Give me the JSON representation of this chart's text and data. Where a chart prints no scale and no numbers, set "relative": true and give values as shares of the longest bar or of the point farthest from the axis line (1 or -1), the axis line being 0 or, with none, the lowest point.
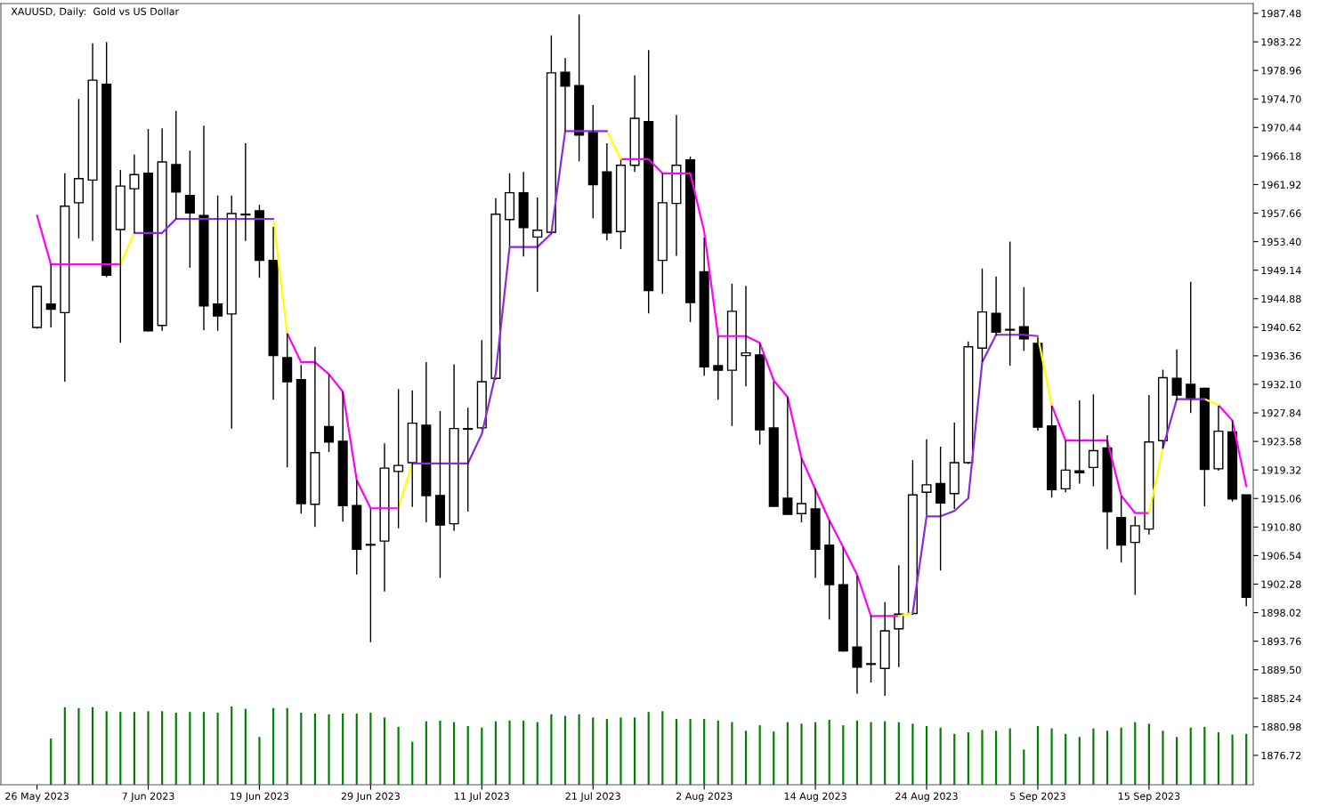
{
  "chart_data": [
    {
      "type": "candlestick",
      "title": "XAUUSD, Daily:  Gold vs US Dollar",
      "categories": [
        "26 May 2023",
        null,
        null,
        null,
        null,
        null,
        null,
        null,
        "7 Jun 2023",
        null,
        null,
        null,
        null,
        null,
        null,
        null,
        "19 Jun 2023",
        null,
        null,
        null,
        null,
        null,
        null,
        null,
        "29 Jun 2023",
        null,
        null,
        null,
        null,
        null,
        null,
        null,
        "11 Jul 2023",
        null,
        null,
        null,
        null,
        null,
        null,
        null,
        "21 Jul 2023",
        null,
        null,
        null,
        null,
        null,
        null,
        null,
        "2 Aug 2023",
        null,
        null,
        null,
        null,
        null,
        null,
        null,
        "14 Aug 2023",
        null,
        null,
        null,
        null,
        null,
        null,
        null,
        "24 Aug 2023",
        null,
        null,
        null,
        null,
        null,
        null,
        null,
        "5 Sep 2023",
        null,
        null,
        null,
        null,
        null,
        null,
        null,
        "15 Sep 2023",
        null,
        null,
        null,
        null,
        null,
        null,
        null
      ],
      "ohlc": [
        [
          1940.6,
          1946.8,
          1940.4,
          1946.7
        ],
        [
          1944.1,
          1950.0,
          1940.6,
          1943.3
        ],
        [
          1942.8,
          1963.6,
          1932.5,
          1958.7
        ],
        [
          1959.2,
          1974.7,
          1953.9,
          1962.8
        ],
        [
          1962.6,
          1983.0,
          1953.5,
          1977.5
        ],
        [
          1976.9,
          1983.2,
          1948.1,
          1948.4
        ],
        [
          1955.2,
          1964.1,
          1938.3,
          1961.7
        ],
        [
          1961.3,
          1966.4,
          1954.7,
          1963.4
        ],
        [
          1963.6,
          1970.2,
          1940.0,
          1940.1
        ],
        [
          1940.9,
          1970.3,
          1940.1,
          1965.3
        ],
        [
          1964.9,
          1972.9,
          1956.8,
          1960.8
        ],
        [
          1960.3,
          1967.0,
          1949.5,
          1957.7
        ],
        [
          1957.3,
          1970.7,
          1940.2,
          1943.8
        ],
        [
          1944.1,
          1960.3,
          1940.1,
          1942.3
        ],
        [
          1942.6,
          1960.3,
          1925.5,
          1957.6
        ],
        [
          1957.4,
          1968.1,
          1953.5,
          1957.5
        ],
        [
          1958.0,
          1958.9,
          1948.0,
          1950.6
        ],
        [
          1950.6,
          1955.6,
          1929.8,
          1936.4
        ],
        [
          1936.1,
          1939.7,
          1919.7,
          1932.5
        ],
        [
          1932.8,
          1935.0,
          1912.8,
          1914.3
        ],
        [
          1914.2,
          1937.7,
          1910.8,
          1921.9
        ],
        [
          1925.8,
          1933.6,
          1922.0,
          1923.5
        ],
        [
          1923.6,
          1931.0,
          1911.6,
          1914.0
        ],
        [
          1914.0,
          1917.8,
          1903.7,
          1907.5
        ],
        [
          1908.2,
          1913.5,
          1893.6,
          1908.1
        ],
        [
          1908.7,
          1923.3,
          1901.2,
          1919.6
        ],
        [
          1919.1,
          1931.4,
          1910.6,
          1920.0
        ],
        [
          1920.4,
          1931.2,
          1913.8,
          1926.3
        ],
        [
          1926.0,
          1935.4,
          1911.5,
          1915.5
        ],
        [
          1915.5,
          1928.1,
          1903.2,
          1911.1
        ],
        [
          1911.3,
          1935.1,
          1910.2,
          1925.5
        ],
        [
          1925.5,
          1928.6,
          1913.1,
          1925.4
        ],
        [
          1925.6,
          1938.7,
          1925.4,
          1932.5
        ],
        [
          1933.0,
          1959.9,
          1932.8,
          1957.5
        ],
        [
          1956.7,
          1963.6,
          1952.7,
          1960.7
        ],
        [
          1960.7,
          1963.8,
          1951.2,
          1955.5
        ],
        [
          1954.1,
          1960.0,
          1945.9,
          1955.1
        ],
        [
          1954.8,
          1984.2,
          1954.6,
          1978.6
        ],
        [
          1978.7,
          1980.8,
          1969.9,
          1976.6
        ],
        [
          1976.7,
          1987.3,
          1965.4,
          1969.3
        ],
        [
          1969.7,
          1973.8,
          1956.9,
          1961.9
        ],
        [
          1963.8,
          1968.1,
          1953.6,
          1954.7
        ],
        [
          1954.9,
          1965.6,
          1952.3,
          1964.8
        ],
        [
          1964.8,
          1978.2,
          1963.8,
          1971.8
        ],
        [
          1971.3,
          1982.0,
          1942.7,
          1946.1
        ],
        [
          1950.6,
          1963.6,
          1945.6,
          1959.2
        ],
        [
          1959.1,
          1972.3,
          1951.3,
          1964.8
        ],
        [
          1965.6,
          1966.1,
          1941.4,
          1944.3
        ],
        [
          1948.9,
          1954.0,
          1933.4,
          1934.7
        ],
        [
          1934.9,
          1939.3,
          1929.8,
          1934.2
        ],
        [
          1934.2,
          1947.1,
          1925.9,
          1943.0
        ],
        [
          1936.4,
          1946.8,
          1931.8,
          1936.8
        ],
        [
          1936.5,
          1938.3,
          1923.1,
          1925.3
        ],
        [
          1925.6,
          1932.5,
          1913.8,
          1913.9
        ],
        [
          1915.1,
          1930.2,
          1912.6,
          1912.7
        ],
        [
          1912.8,
          1921.1,
          1911.5,
          1914.3
        ],
        [
          1913.5,
          1916.6,
          1903.2,
          1907.5
        ],
        [
          1908.1,
          1911.8,
          1897.0,
          1902.2
        ],
        [
          1902.2,
          1907.8,
          1892.2,
          1892.3
        ],
        [
          1892.9,
          1903.5,
          1885.9,
          1889.9
        ],
        [
          1890.4,
          1897.6,
          1887.6,
          1890.3
        ],
        [
          1889.7,
          1899.6,
          1885.6,
          1895.3
        ],
        [
          1895.6,
          1905.1,
          1889.9,
          1897.8
        ],
        [
          1897.9,
          1920.8,
          1897.7,
          1915.6
        ],
        [
          1916.0,
          1923.9,
          1912.5,
          1917.1
        ],
        [
          1917.3,
          1922.8,
          1904.3,
          1914.4
        ],
        [
          1915.8,
          1926.4,
          1913.5,
          1920.4
        ],
        [
          1920.4,
          1938.5,
          1920.2,
          1937.7
        ],
        [
          1937.5,
          1949.4,
          1935.4,
          1942.9
        ],
        [
          1942.7,
          1948.2,
          1939.4,
          1939.9
        ],
        [
          1940.3,
          1953.4,
          1934.9,
          1940.2
        ],
        [
          1940.7,
          1946.6,
          1937.1,
          1938.9
        ],
        [
          1938.2,
          1939.1,
          1925.2,
          1925.7
        ],
        [
          1925.9,
          1928.9,
          1915.2,
          1916.4
        ],
        [
          1916.5,
          1923.7,
          1916.0,
          1919.3
        ],
        [
          1919.2,
          1929.7,
          1917.3,
          1918.9
        ],
        [
          1919.7,
          1930.6,
          1916.9,
          1922.2
        ],
        [
          1922.6,
          1924.5,
          1907.5,
          1913.1
        ],
        [
          1912.2,
          1915.4,
          1905.5,
          1908.1
        ],
        [
          1908.5,
          1912.4,
          1900.7,
          1911.0
        ],
        [
          1910.5,
          1930.5,
          1909.7,
          1923.5
        ],
        [
          1923.7,
          1934.3,
          1922.6,
          1933.1
        ],
        [
          1933.0,
          1937.3,
          1929.7,
          1930.5
        ],
        [
          1932.1,
          1947.4,
          1927.8,
          1929.9
        ],
        [
          1931.5,
          1931.6,
          1913.9,
          1919.4
        ],
        [
          1919.5,
          1928.9,
          1919.2,
          1925.1
        ],
        [
          1925.0,
          1926.7,
          1914.6,
          1915.0
        ],
        [
          1915.6,
          1915.6,
          1899.0,
          1900.3
        ]
      ],
      "series": [
        {
          "type": "line",
          "color": "#ff00ff",
          "values": [
            1957.3,
            1950.0,
            1950.0,
            1950.0,
            1950.0,
            1950.0,
            1950.0,
            null,
            null,
            null,
            null,
            null,
            null,
            null,
            null,
            null,
            null,
            null,
            1939.7,
            1935.4,
            1935.4,
            1933.6,
            1931.0,
            1917.8,
            1913.6,
            1913.6,
            1913.6,
            null,
            null,
            null,
            null,
            null,
            null,
            null,
            null,
            null,
            null,
            null,
            null,
            null,
            null,
            null,
            1965.7,
            1965.7,
            1965.7,
            1963.6,
            1963.6,
            1963.6,
            1954.9,
            1939.3,
            1939.3,
            1939.3,
            1938.3,
            1932.7,
            1930.2,
            1921.1,
            1916.4,
            1911.8,
            1907.8,
            1903.7,
            1897.5,
            1897.5,
            1897.5,
            null,
            null,
            null,
            null,
            null,
            null,
            null,
            null,
            null,
            null,
            1929.0,
            1923.7,
            1923.7,
            1923.7,
            1923.7,
            1915.5,
            1912.9,
            1912.9,
            null,
            null,
            null,
            null,
            1929.0,
            1926.7,
            1916.9
          ]
        },
        {
          "type": "line",
          "color": "#ffff00",
          "values": [
            null,
            null,
            null,
            null,
            null,
            null,
            1950.0,
            1954.7,
            null,
            null,
            null,
            null,
            null,
            null,
            null,
            null,
            null,
            1956.8,
            1939.7,
            null,
            null,
            null,
            null,
            null,
            null,
            null,
            1913.6,
            1920.3,
            null,
            null,
            null,
            null,
            null,
            null,
            null,
            null,
            null,
            null,
            null,
            null,
            null,
            1969.9,
            1965.7,
            null,
            null,
            null,
            null,
            null,
            null,
            null,
            null,
            null,
            null,
            null,
            null,
            null,
            null,
            null,
            null,
            null,
            null,
            null,
            1897.5,
            1898.0,
            null,
            null,
            null,
            null,
            null,
            null,
            null,
            null,
            1939.3,
            1929.0,
            null,
            null,
            null,
            null,
            null,
            null,
            1912.9,
            1922.6,
            null,
            null,
            1929.9,
            1929.0,
            null,
            null
          ]
        },
        {
          "type": "line",
          "color": "#8a2be2",
          "values": [
            null,
            null,
            null,
            null,
            null,
            null,
            null,
            1954.7,
            1954.7,
            1954.7,
            1956.8,
            1956.8,
            1956.8,
            1956.8,
            1956.8,
            1956.8,
            1956.8,
            1956.8,
            null,
            null,
            null,
            null,
            null,
            null,
            null,
            null,
            null,
            1920.3,
            1920.3,
            1920.3,
            1920.3,
            1920.3,
            1924.7,
            1933.7,
            1952.6,
            1952.6,
            1952.6,
            1954.6,
            1969.9,
            1969.9,
            1969.9,
            1969.9,
            null,
            null,
            null,
            null,
            null,
            null,
            null,
            null,
            null,
            null,
            null,
            null,
            null,
            null,
            null,
            null,
            null,
            null,
            null,
            null,
            null,
            1898.0,
            1912.4,
            1912.4,
            1913.2,
            1915.1,
            1935.4,
            1939.5,
            1939.5,
            1939.5,
            1939.3,
            null,
            null,
            null,
            null,
            null,
            null,
            null,
            null,
            1922.6,
            1929.9,
            1929.9,
            1929.9,
            null,
            null,
            null
          ]
        }
      ],
      "ylim": [
        1872.33,
        1988.94
      ],
      "yticks": [
        1987.48,
        1983.22,
        1978.96,
        {
          "value": 1974.7,
          "label": "1974.70"
        },
        1970.44,
        1966.18,
        1961.92,
        1957.66,
        {
          "value": 1953.4,
          "label": "1953.40"
        },
        1949.14,
        1944.88,
        1940.62,
        1936.36,
        {
          "value": 1932.1,
          "label": "1932.10"
        },
        1927.84,
        1923.58,
        1919.32,
        1915.06,
        {
          "value": 1910.8,
          "label": "1910.80"
        },
        1906.54,
        1902.28,
        1898.02,
        1893.76,
        {
          "value": 1889.5,
          "label": "1889.50"
        },
        1885.24,
        1880.98,
        1876.72
      ]
    },
    {
      "type": "bar",
      "relative": true,
      "color": "#008000",
      "categories": [
        null,
        null,
        null,
        null,
        null,
        null,
        null,
        null,
        null,
        null,
        null,
        null,
        null,
        null,
        null,
        null,
        null,
        null,
        null,
        null,
        null,
        null,
        null,
        null,
        null,
        null,
        null,
        null,
        null,
        null,
        null,
        null,
        null,
        null,
        null,
        null,
        null,
        null,
        null,
        null,
        null,
        null,
        null,
        null,
        null,
        null,
        null,
        null,
        null,
        null,
        null,
        null,
        null,
        null,
        null,
        null,
        null,
        null,
        null,
        null,
        null,
        null,
        null,
        null,
        null,
        null,
        null,
        null,
        null,
        null,
        null,
        null,
        null,
        null,
        null,
        null,
        null,
        null,
        null,
        null,
        null,
        null,
        null,
        null,
        null,
        null,
        null,
        null
      ],
      "values": [
        null,
        0.59,
        0.99,
        0.98,
        0.99,
        0.94,
        0.93,
        0.93,
        0.94,
        0.94,
        0.92,
        0.93,
        0.93,
        0.92,
        1.0,
        0.97,
        0.61,
        0.98,
        0.98,
        0.92,
        0.91,
        0.9,
        0.91,
        0.91,
        0.92,
        0.86,
        0.74,
        0.55,
        0.81,
        0.82,
        0.8,
        0.75,
        0.73,
        0.81,
        0.82,
        0.82,
        0.8,
        0.9,
        0.88,
        0.9,
        0.86,
        0.84,
        0.86,
        0.86,
        0.93,
        0.94,
        0.84,
        0.84,
        0.84,
        0.82,
        0.8,
        0.69,
        0.76,
        0.68,
        0.8,
        0.78,
        0.8,
        0.83,
        0.76,
        0.82,
        0.8,
        0.81,
        0.8,
        0.78,
        0.75,
        0.73,
        0.65,
        0.67,
        0.7,
        0.69,
        0.72,
        0.45,
        0.75,
        0.72,
        0.65,
        0.61,
        0.72,
        0.69,
        0.73,
        0.8,
        0.78,
        0.69,
        0.61,
        0.73,
        0.74,
        0.67,
        0.64,
        0.65
      ]
    }
  ]
}
